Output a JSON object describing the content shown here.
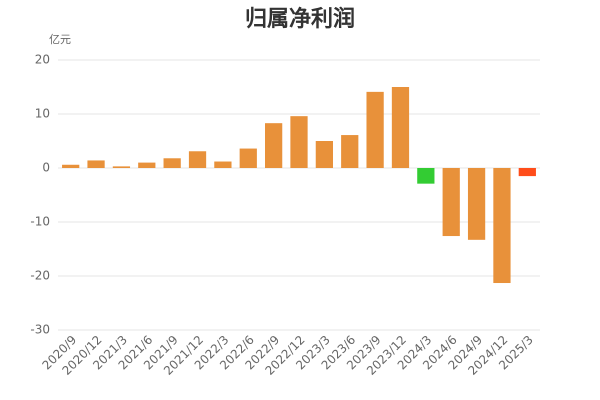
{
  "chart_data": {
    "type": "bar",
    "title": "归属净利润",
    "y_axis_label": "亿元",
    "categories": [
      "2020/9",
      "2020/12",
      "2021/3",
      "2021/6",
      "2021/9",
      "2021/12",
      "2022/3",
      "2022/6",
      "2022/9",
      "2022/12",
      "2023/3",
      "2023/6",
      "2023/9",
      "2023/12",
      "2024/3",
      "2024/6",
      "2024/9",
      "2024/12",
      "2025/3"
    ],
    "values": [
      0.6,
      1.4,
      0.3,
      1.0,
      1.8,
      3.1,
      1.2,
      3.6,
      8.3,
      9.6,
      5.0,
      6.1,
      14.1,
      15.0,
      -2.9,
      -12.6,
      -13.3,
      -21.3,
      -1.5
    ],
    "colors": [
      "#e8913a",
      "#e8913a",
      "#e8913a",
      "#e8913a",
      "#e8913a",
      "#e8913a",
      "#e8913a",
      "#e8913a",
      "#e8913a",
      "#e8913a",
      "#e8913a",
      "#e8913a",
      "#e8913a",
      "#e8913a",
      "#33cc33",
      "#e8913a",
      "#e8913a",
      "#e8913a",
      "#ff4d1a"
    ],
    "ylim": [
      -30,
      20
    ],
    "yticks": [
      -30,
      -20,
      -10,
      0,
      10,
      20
    ],
    "grid": true
  }
}
